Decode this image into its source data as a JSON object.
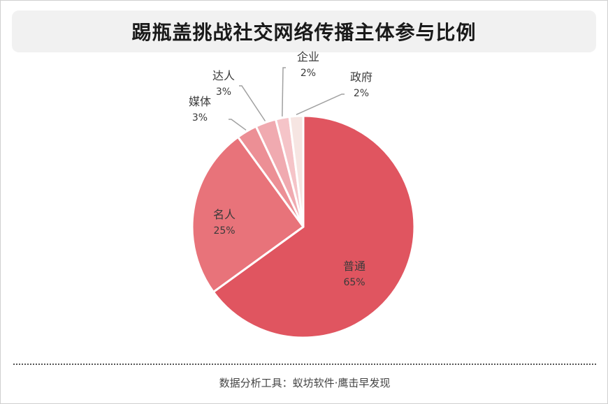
{
  "title": "踢瓶盖挑战社交网络传播主体参与比例",
  "source": "数据分析工具：蚁坊软件·鹰击早发现",
  "chart_data": {
    "type": "pie",
    "title": "踢瓶盖挑战社交网络传播主体参与比例",
    "slices": [
      {
        "label": "普通",
        "value": 65,
        "value_text": "65%",
        "color": "#e05560"
      },
      {
        "label": "名人",
        "value": 25,
        "value_text": "25%",
        "color": "#e8737a"
      },
      {
        "label": "媒体",
        "value": 3,
        "value_text": "3%",
        "color": "#ec8f95"
      },
      {
        "label": "达人",
        "value": 3,
        "value_text": "3%",
        "color": "#f0aab0"
      },
      {
        "label": "企业",
        "value": 2,
        "value_text": "2%",
        "color": "#f5c4c8"
      },
      {
        "label": "政府",
        "value": 2,
        "value_text": "2%",
        "color": "#f6e5e2"
      }
    ],
    "legend": "none"
  }
}
